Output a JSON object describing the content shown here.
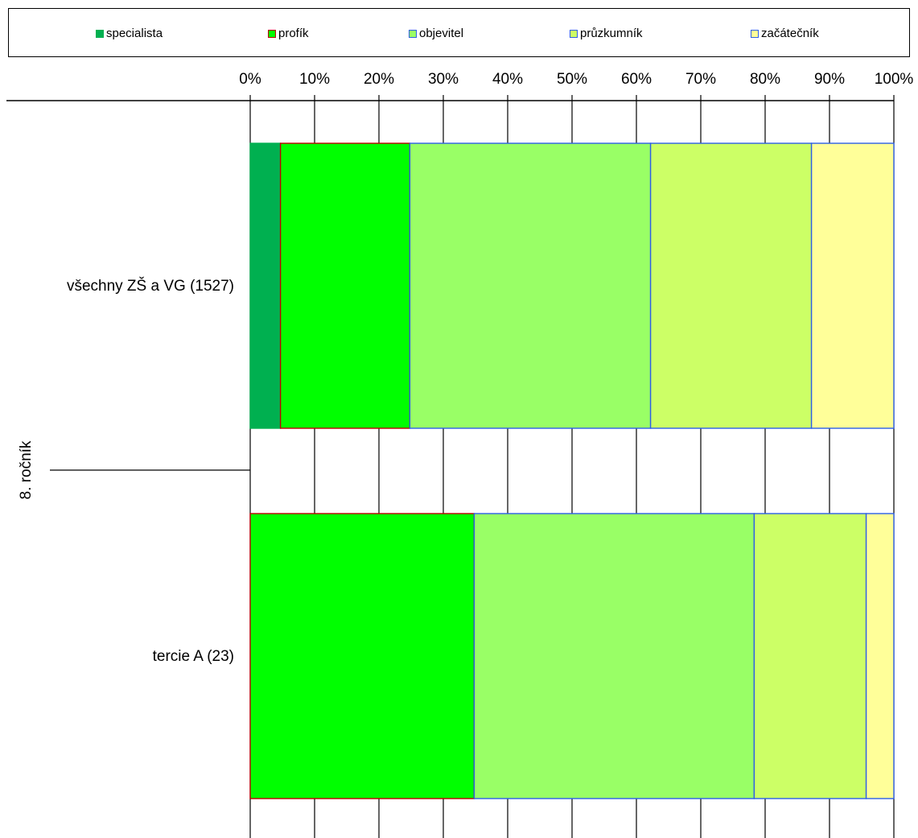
{
  "chart_data": {
    "type": "bar",
    "orientation": "horizontal",
    "stacked": "percent",
    "title": "",
    "xlabel": "",
    "ylabel": "",
    "xlim": [
      0,
      100
    ],
    "x_tick_labels": [
      "0%",
      "10%",
      "20%",
      "30%",
      "40%",
      "50%",
      "60%",
      "70%",
      "80%",
      "90%",
      "100%"
    ],
    "x_axis_position": "top",
    "grid": "vertical",
    "legend_position": "top",
    "group_label": "8. ročník",
    "categories": [
      "všechny ZŠ a VG (1527)",
      "tercie A (23)"
    ],
    "series": [
      {
        "name": "specialista",
        "values": [
          4.7,
          0
        ],
        "color": "#00B050",
        "border": "#00B050"
      },
      {
        "name": "profík",
        "values": [
          20.1,
          34.8
        ],
        "color": "#00FF00",
        "border": "#C00000"
      },
      {
        "name": "objevitel",
        "values": [
          37.4,
          43.5
        ],
        "color": "#99FF66",
        "border": "#2E5FE6"
      },
      {
        "name": "průzkumník",
        "values": [
          25.0,
          17.4
        ],
        "color": "#CCFF66",
        "border": "#2E5FE6"
      },
      {
        "name": "začátečník",
        "values": [
          12.8,
          4.3
        ],
        "color": "#FFFF99",
        "border": "#2E5FE6"
      }
    ]
  }
}
